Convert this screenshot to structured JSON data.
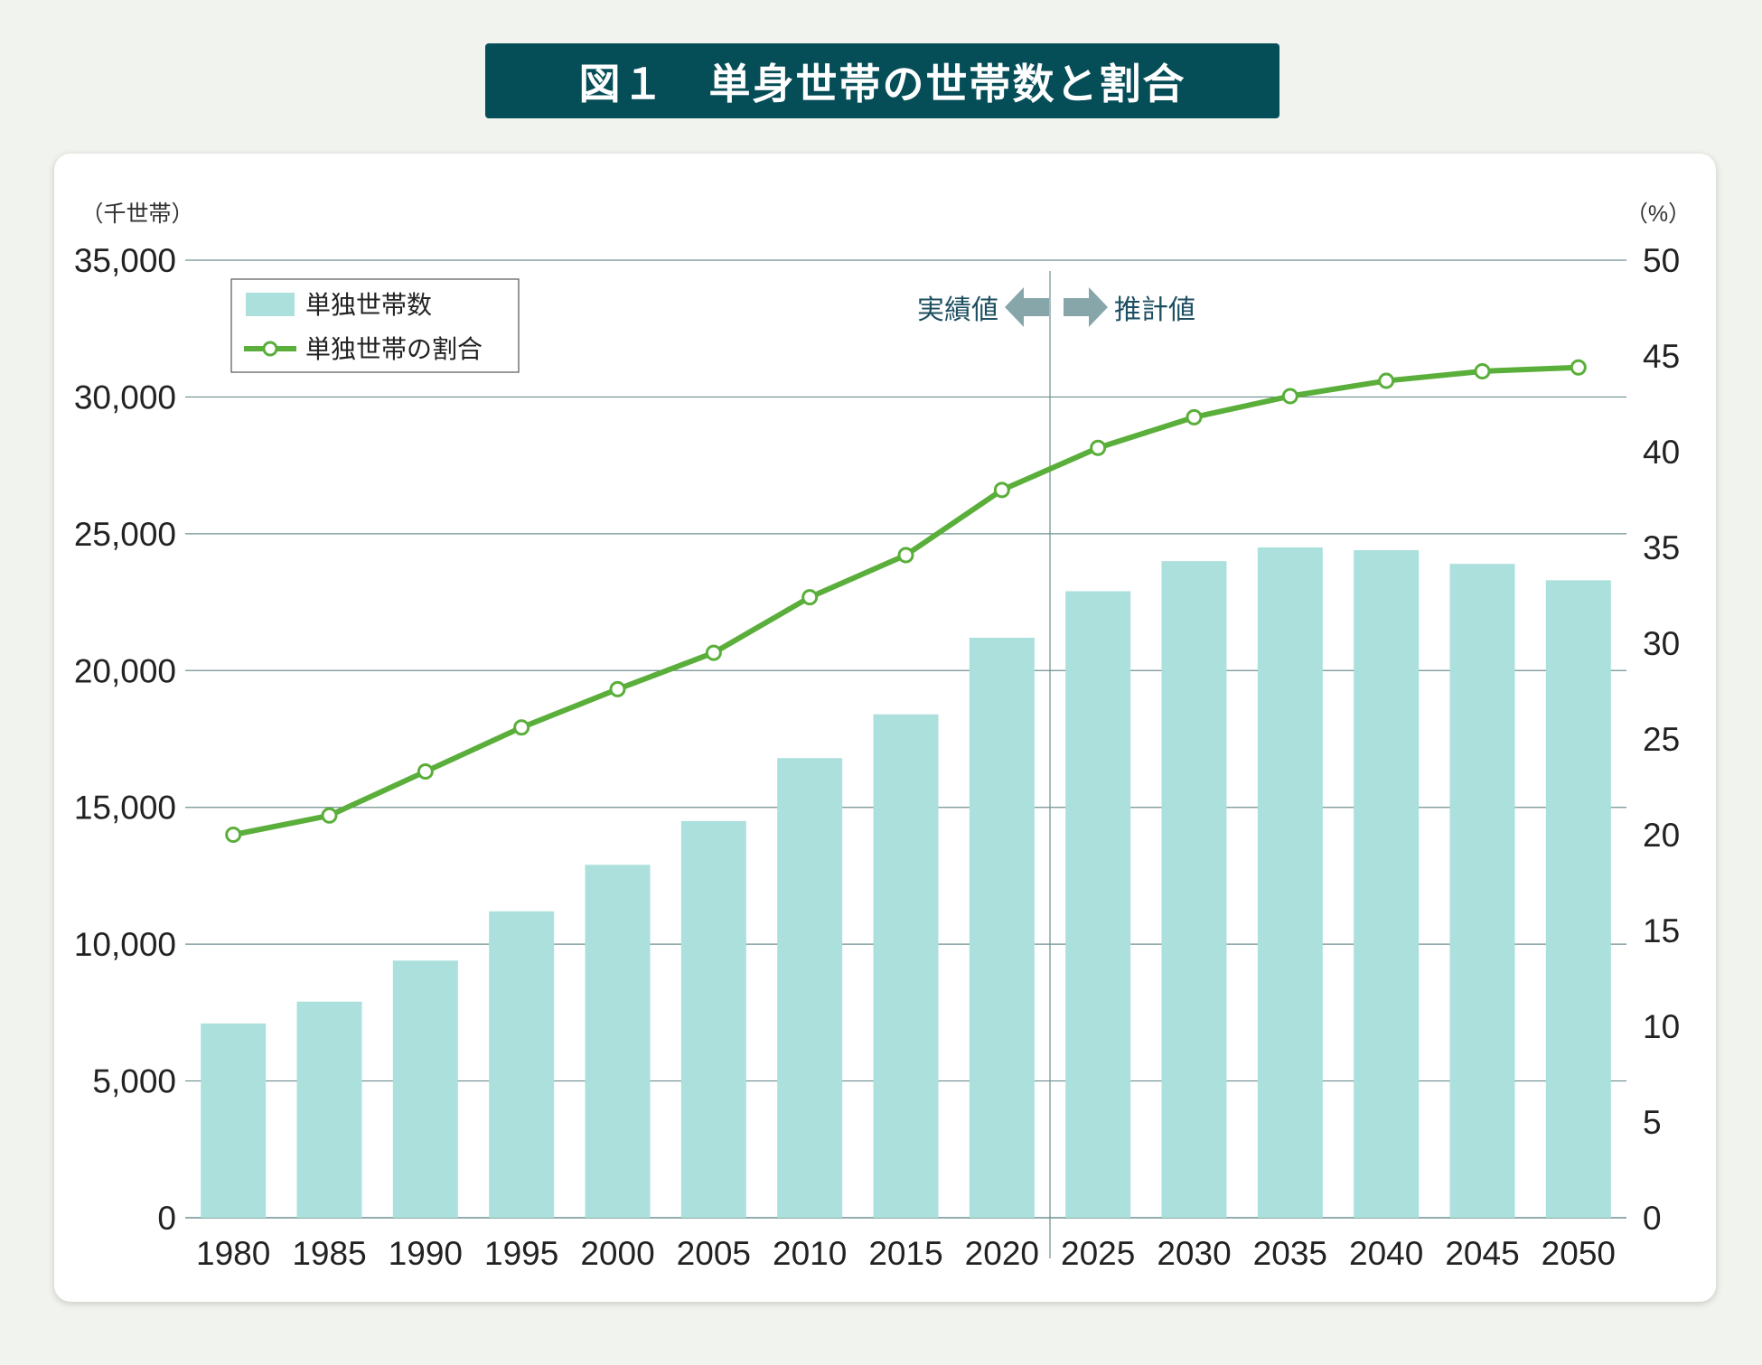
{
  "title": "図１　単身世帯の世帯数と割合",
  "chart_data": {
    "type": "bar",
    "categories": [
      "1980",
      "1985",
      "1990",
      "1995",
      "2000",
      "2005",
      "2010",
      "2015",
      "2020",
      "2025",
      "2030",
      "2035",
      "2040",
      "2045",
      "2050"
    ],
    "series": [
      {
        "name": "単独世帯数",
        "type": "bar",
        "axis": "left",
        "color": "#abe0dc",
        "values": [
          7100,
          7900,
          9400,
          11200,
          12900,
          14500,
          16800,
          18400,
          21200,
          22900,
          24000,
          24500,
          24400,
          23900,
          23300
        ]
      },
      {
        "name": "単独世帯の割合",
        "type": "line",
        "axis": "right",
        "color": "#5aae3a",
        "values": [
          20.0,
          21.0,
          23.3,
          25.6,
          27.6,
          29.5,
          32.4,
          34.6,
          38.0,
          40.2,
          41.8,
          42.9,
          43.7,
          44.2,
          44.4
        ]
      }
    ],
    "left_axis": {
      "unit": "（千世帯）",
      "ylim": [
        0,
        35000
      ],
      "ticks": [
        "0",
        "5,000",
        "10,000",
        "15,000",
        "20,000",
        "25,000",
        "30,000",
        "35,000"
      ]
    },
    "right_axis": {
      "unit": "（%）",
      "ylim": [
        0,
        50
      ],
      "ticks": [
        "0",
        "5",
        "10",
        "15",
        "20",
        "25",
        "30",
        "35",
        "40",
        "45",
        "50"
      ]
    },
    "divider": {
      "between": [
        "2020",
        "2025"
      ],
      "left_label": "実績値",
      "right_label": "推計値"
    },
    "legend_placement": "top-left",
    "grid": true
  }
}
